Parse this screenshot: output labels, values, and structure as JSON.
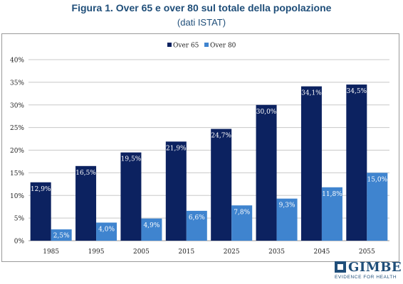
{
  "header": {
    "title": "Figura 1. Over 65 e over 80 sul totale della popolazione",
    "subtitle": "(dati ISTAT)"
  },
  "logo": {
    "name": "GIMBE",
    "tagline": "EVIDENCE FOR HEALTH"
  },
  "chart_data": {
    "type": "bar",
    "categories": [
      "1985",
      "1995",
      "2005",
      "2015",
      "2025",
      "2035",
      "2045",
      "2055"
    ],
    "series": [
      {
        "name": "Over 65",
        "values": [
          12.9,
          16.5,
          19.5,
          21.9,
          24.7,
          30.0,
          34.1,
          34.5
        ],
        "labels": [
          "12,9%",
          "16,5%",
          "19,5%",
          "21,9%",
          "24,7%",
          "30,0%",
          "34,1%",
          "34,5%"
        ],
        "color": "#0c2260"
      },
      {
        "name": "Over 80",
        "values": [
          2.5,
          4.0,
          4.9,
          6.6,
          7.8,
          9.3,
          11.8,
          15.0
        ],
        "labels": [
          "2,5%",
          "4,0%",
          "4,9%",
          "6,6%",
          "7,8%",
          "9,3%",
          "11,8%",
          "15,0%"
        ],
        "color": "#3f84cf"
      }
    ],
    "y_ticks": [
      "0%",
      "5%",
      "10%",
      "15%",
      "20%",
      "25%",
      "30%",
      "35%",
      "40%"
    ],
    "ylim": [
      0,
      40
    ],
    "grid": true,
    "legend": "top-center",
    "title": "",
    "xlabel": "",
    "ylabel": ""
  }
}
